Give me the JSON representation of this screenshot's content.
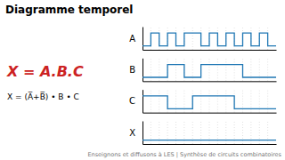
{
  "chart_data": [
    {
      "type": "line",
      "title": "Diagramme temporel",
      "line_style": "step",
      "x": [
        0,
        1,
        2,
        3,
        4,
        5,
        7,
        8,
        9,
        10,
        11,
        12,
        13,
        14,
        15,
        16
      ],
      "series": [
        {
          "name": "A",
          "values": [
            0,
            1,
            0,
            1,
            0,
            1,
            0,
            1,
            0,
            1,
            0,
            1,
            0,
            1,
            0,
            0
          ]
        }
      ],
      "xlim": [
        0,
        16
      ],
      "xticks": [
        1,
        2,
        3,
        4,
        5,
        6,
        7,
        8,
        9,
        10,
        11,
        12,
        13,
        14,
        15
      ],
      "ylim": [
        -0.3,
        1.5
      ],
      "grid": true,
      "tick_labels": false,
      "annotations": [
        {
          "text": "X = A.B.C",
          "color": "#cc2222"
        },
        {
          "text": "X = (A̅+B̅) • B • C"
        },
        {
          "text": "Enseignons et diffusons à LES | Synthèse de circuits combinatoires",
          "color": "#777777"
        }
      ]
    },
    {
      "type": "line",
      "line_style": "step",
      "x": [
        0,
        3,
        5,
        7,
        12,
        16
      ],
      "series": [
        {
          "name": "B",
          "values": [
            0,
            1,
            0,
            1,
            0,
            0
          ]
        }
      ],
      "xlim": [
        0,
        16
      ],
      "xticks": [
        1,
        2,
        3,
        4,
        5,
        6,
        7,
        8,
        9,
        10,
        11,
        12,
        13,
        14,
        15
      ],
      "ylim": [
        -0.3,
        1.5
      ],
      "grid": true,
      "tick_labels": false
    },
    {
      "type": "line",
      "line_style": "step",
      "x": [
        0,
        3,
        6,
        11,
        16
      ],
      "series": [
        {
          "name": "C",
          "values": [
            1,
            0,
            1,
            0,
            0
          ]
        }
      ],
      "xlim": [
        0,
        16
      ],
      "xticks": [
        1,
        2,
        3,
        4,
        5,
        6,
        7,
        8,
        9,
        10,
        11,
        12,
        13,
        14,
        15
      ],
      "ylim": [
        -0.3,
        1.5
      ],
      "grid": true,
      "tick_labels": false
    },
    {
      "type": "line",
      "line_style": "step",
      "x": [
        0,
        16
      ],
      "series": [
        {
          "name": "X",
          "values": [
            0,
            0
          ]
        }
      ],
      "xlim": [
        0,
        16
      ],
      "xticks": [
        1,
        2,
        3,
        4,
        5,
        6,
        7,
        8,
        9,
        10,
        11,
        12,
        13,
        14,
        15
      ],
      "ylim": [
        -0.3,
        1.5
      ],
      "grid": true,
      "tick_labels": false
    }
  ]
}
